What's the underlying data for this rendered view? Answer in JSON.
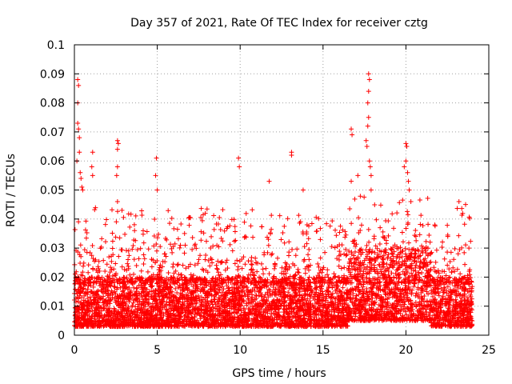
{
  "chart_data": {
    "type": "scatter",
    "title": "Day 357 of 2021, Rate Of TEC Index for receiver cztg",
    "xlabel": "GPS time / hours",
    "ylabel": "ROTI / TECUs",
    "xlim": [
      0,
      25
    ],
    "ylim": [
      0,
      0.1
    ],
    "x_ticks": [
      0,
      5,
      10,
      15,
      20,
      25
    ],
    "x_tick_labels": [
      "0",
      "5",
      "10",
      "15",
      "20",
      "25"
    ],
    "y_ticks": [
      0,
      0.01,
      0.02,
      0.03,
      0.04,
      0.05,
      0.06,
      0.07,
      0.08,
      0.09,
      0.1
    ],
    "y_tick_labels": [
      "0",
      "0.01",
      "0.02",
      "0.03",
      "0.04",
      "0.05",
      "0.06",
      "0.07",
      "0.08",
      "0.09",
      "0.1"
    ],
    "grid": true,
    "marker": "+",
    "color": "#ff0000",
    "series": [
      {
        "name": "ROTI",
        "baseline": {
          "x_range": [
            0,
            24
          ],
          "typical_range": [
            0.003,
            0.02
          ],
          "enhanced_x_range": [
            16.5,
            21.5
          ],
          "enhanced_typical_range": [
            0.005,
            0.03
          ]
        },
        "notable_points": [
          {
            "x": 0.2,
            "y": 0.088
          },
          {
            "x": 0.25,
            "y": 0.086
          },
          {
            "x": 0.2,
            "y": 0.08
          },
          {
            "x": 0.2,
            "y": 0.073
          },
          {
            "x": 0.25,
            "y": 0.071
          },
          {
            "x": 0.3,
            "y": 0.068
          },
          {
            "x": 0.35,
            "y": 0.056
          },
          {
            "x": 0.4,
            "y": 0.054
          },
          {
            "x": 0.45,
            "y": 0.051
          },
          {
            "x": 0.3,
            "y": 0.063
          },
          {
            "x": 0.5,
            "y": 0.05
          },
          {
            "x": 0.15,
            "y": 0.06
          },
          {
            "x": 1.1,
            "y": 0.063
          },
          {
            "x": 1.05,
            "y": 0.058
          },
          {
            "x": 1.1,
            "y": 0.055
          },
          {
            "x": 2.6,
            "y": 0.067
          },
          {
            "x": 2.65,
            "y": 0.066
          },
          {
            "x": 2.6,
            "y": 0.064
          },
          {
            "x": 2.6,
            "y": 0.058
          },
          {
            "x": 2.55,
            "y": 0.055
          },
          {
            "x": 2.6,
            "y": 0.046
          },
          {
            "x": 4.9,
            "y": 0.055
          },
          {
            "x": 4.95,
            "y": 0.061
          },
          {
            "x": 5.0,
            "y": 0.05
          },
          {
            "x": 9.9,
            "y": 0.061
          },
          {
            "x": 9.95,
            "y": 0.058
          },
          {
            "x": 11.75,
            "y": 0.053
          },
          {
            "x": 13.1,
            "y": 0.063
          },
          {
            "x": 13.1,
            "y": 0.062
          },
          {
            "x": 13.8,
            "y": 0.05
          },
          {
            "x": 16.7,
            "y": 0.071
          },
          {
            "x": 16.75,
            "y": 0.069
          },
          {
            "x": 16.7,
            "y": 0.053
          },
          {
            "x": 17.1,
            "y": 0.055
          },
          {
            "x": 17.6,
            "y": 0.067
          },
          {
            "x": 17.65,
            "y": 0.065
          },
          {
            "x": 17.7,
            "y": 0.072
          },
          {
            "x": 17.75,
            "y": 0.075
          },
          {
            "x": 17.8,
            "y": 0.06
          },
          {
            "x": 17.85,
            "y": 0.058
          },
          {
            "x": 17.75,
            "y": 0.084
          },
          {
            "x": 17.8,
            "y": 0.088
          },
          {
            "x": 17.75,
            "y": 0.09
          },
          {
            "x": 17.7,
            "y": 0.08
          },
          {
            "x": 17.9,
            "y": 0.055
          },
          {
            "x": 17.9,
            "y": 0.05
          },
          {
            "x": 20.0,
            "y": 0.066
          },
          {
            "x": 20.05,
            "y": 0.065
          },
          {
            "x": 20.0,
            "y": 0.06
          },
          {
            "x": 20.1,
            "y": 0.056
          },
          {
            "x": 20.15,
            "y": 0.053
          },
          {
            "x": 20.2,
            "y": 0.05
          },
          {
            "x": 20.3,
            "y": 0.046
          },
          {
            "x": 19.9,
            "y": 0.058
          },
          {
            "x": 23.2,
            "y": 0.046
          },
          {
            "x": 23.6,
            "y": 0.045
          },
          {
            "x": 23.8,
            "y": 0.03
          }
        ]
      }
    ]
  }
}
